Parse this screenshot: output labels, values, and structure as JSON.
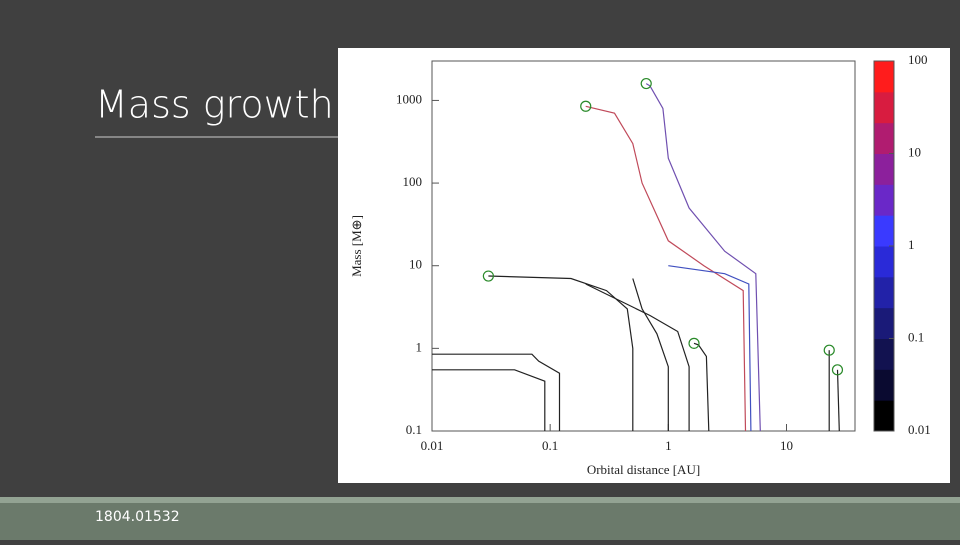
{
  "slide": {
    "title": "Mass growth",
    "footer": "1804.01532"
  },
  "chart_data": {
    "type": "line",
    "xlabel": "Orbital distance [AU]",
    "ylabel": "Mass [M⊕]",
    "xscale": "log",
    "yscale": "log",
    "xlim": [
      0.01,
      38
    ],
    "ylim": [
      0.1,
      3000
    ],
    "xticks": [
      0.01,
      0.1,
      1,
      10
    ],
    "yticks": [
      0.1,
      1,
      10,
      100,
      1000
    ],
    "tracks": [
      {
        "color": "#c04a5a",
        "x": [
          4.5,
          4.3,
          2,
          1,
          0.6,
          0.5,
          0.35,
          0.2
        ],
        "y": [
          0.1,
          5,
          10,
          20,
          100,
          300,
          700,
          850
        ]
      },
      {
        "color": "#7050b0",
        "x": [
          6,
          5.5,
          3,
          1.5,
          1,
          0.9,
          0.7,
          0.65
        ],
        "y": [
          0.1,
          8,
          15,
          50,
          200,
          800,
          1500,
          1600
        ]
      },
      {
        "color": "#222222",
        "x": [
          0.5,
          0.5,
          0.45,
          0.3,
          0.15,
          0.03
        ],
        "y": [
          0.1,
          1,
          3,
          5,
          7,
          7.5
        ]
      },
      {
        "color": "#222222",
        "x": [
          0.12,
          0.12,
          0.08,
          0.07,
          0.01
        ],
        "y": [
          0.1,
          0.5,
          0.7,
          0.85,
          0.85
        ]
      },
      {
        "color": "#222222",
        "x": [
          0.09,
          0.09,
          0.05,
          0.01
        ],
        "y": [
          0.1,
          0.4,
          0.55,
          0.55
        ]
      },
      {
        "color": "#222222",
        "x": [
          2.2,
          2.1,
          1.8,
          1.65
        ],
        "y": [
          0.1,
          0.8,
          1.1,
          1.15
        ]
      },
      {
        "color": "#222222",
        "x": [
          23,
          23
        ],
        "y": [
          0.1,
          0.95
        ]
      },
      {
        "color": "#222222",
        "x": [
          28,
          27
        ],
        "y": [
          0.1,
          0.55
        ]
      },
      {
        "color": "#222222",
        "x": [
          1,
          1,
          0.8,
          0.6,
          0.5
        ],
        "y": [
          0.1,
          0.6,
          1.5,
          3,
          7
        ]
      },
      {
        "color": "#222222",
        "x": [
          1.5,
          1.5,
          1.2,
          0.7,
          0.2
        ],
        "y": [
          0.1,
          0.6,
          1.6,
          2.5,
          6
        ]
      },
      {
        "color": "#4050c0",
        "x": [
          5,
          4.8,
          3,
          1
        ],
        "y": [
          0.1,
          6,
          8,
          10
        ]
      }
    ],
    "markers": {
      "color": "#2a8a2a",
      "x": [
        0.2,
        0.65,
        0.03,
        1.65,
        23,
        27
      ],
      "y": [
        850,
        1600,
        7.5,
        1.15,
        0.95,
        0.55
      ]
    },
    "colorbar": {
      "lim": [
        0.01,
        100
      ],
      "ticks": [
        100,
        10,
        1,
        0.1,
        0.01
      ],
      "colors": [
        "#000000",
        "#0a0a30",
        "#121250",
        "#1a1a78",
        "#2222a8",
        "#2a2ad8",
        "#3a3aff",
        "#6a28c8",
        "#8c209c",
        "#b01c70",
        "#d81c40",
        "#ff1c1c"
      ]
    }
  }
}
